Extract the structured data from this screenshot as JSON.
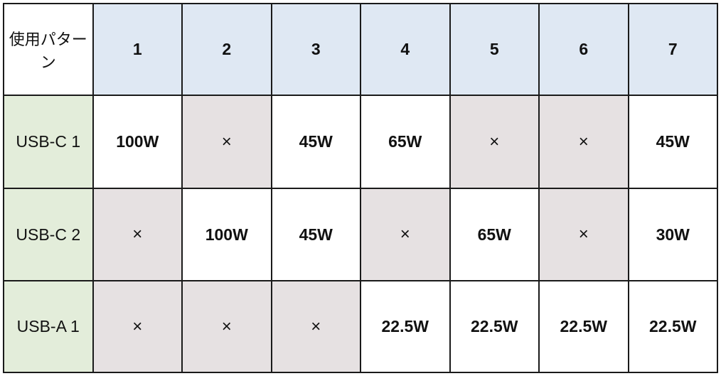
{
  "table": {
    "corner_label": "使用パターン",
    "columns": [
      "1",
      "2",
      "3",
      "4",
      "5",
      "6",
      "7"
    ],
    "rows": [
      {
        "label": "USB-C 1",
        "cells": [
          "100W",
          "×",
          "45W",
          "65W",
          "×",
          "×",
          "45W"
        ]
      },
      {
        "label": "USB-C 2",
        "cells": [
          "×",
          "100W",
          "45W",
          "×",
          "65W",
          "×",
          "30W"
        ]
      },
      {
        "label": "USB-A 1",
        "cells": [
          "×",
          "×",
          "×",
          "22.5W",
          "22.5W",
          "22.5W",
          "22.5W"
        ]
      }
    ]
  },
  "colors": {
    "header_bg": "#dfe8f3",
    "row_label_bg": "#e3edda",
    "unavailable_bg": "#e6e1e2",
    "border": "#1a1a1a"
  }
}
